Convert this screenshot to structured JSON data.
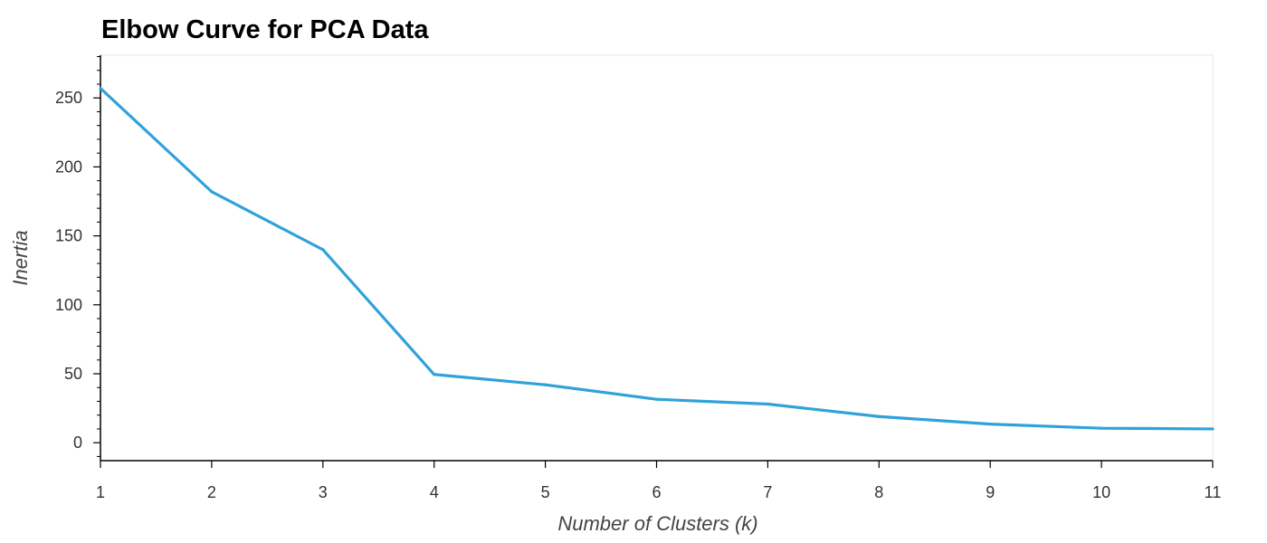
{
  "colors": {
    "line": "#30a2da",
    "axis": "#000000",
    "frame": "#e5e5e5",
    "background": "#ffffff"
  },
  "chart_data": {
    "type": "line",
    "title": "Elbow Curve for PCA Data",
    "xlabel": "Number of Clusters (k)",
    "ylabel": "Inertia",
    "x": [
      1,
      2,
      3,
      4,
      5,
      6,
      7,
      8,
      9,
      10,
      11
    ],
    "series": [
      {
        "values": [
          257,
          182,
          140,
          49.5,
          42,
          31.5,
          28,
          19,
          13.5,
          10.5,
          10
        ]
      }
    ],
    "xlim": [
      1,
      11
    ],
    "ylim": [
      -13,
      281
    ],
    "x_ticks": [
      1,
      2,
      3,
      4,
      5,
      6,
      7,
      8,
      9,
      10,
      11
    ],
    "y_ticks": [
      0,
      50,
      100,
      150,
      200,
      250
    ],
    "grid": false,
    "legend": "none"
  }
}
